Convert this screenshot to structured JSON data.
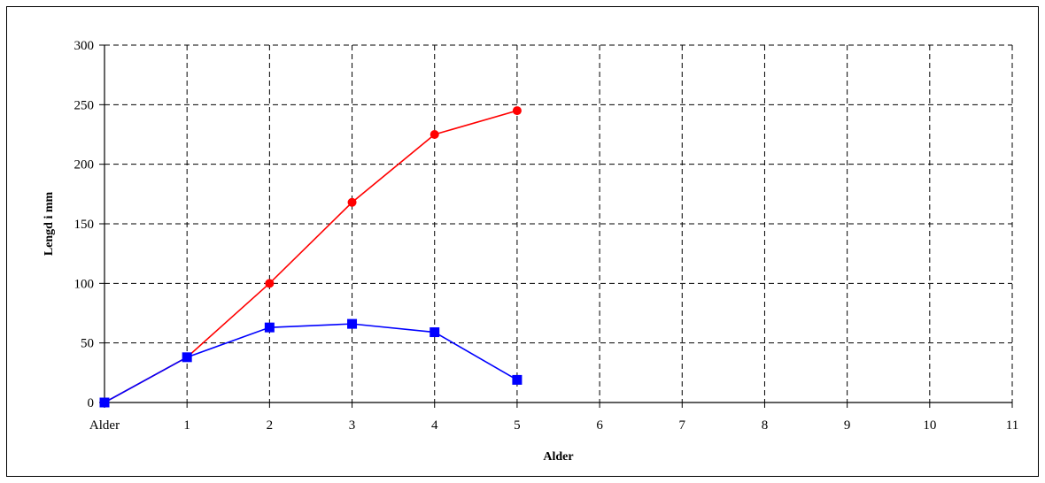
{
  "chart_data": {
    "type": "line",
    "title": "",
    "xlabel": "Alder",
    "ylabel": "Lengd i mm",
    "x_tick_labels": [
      "Alder",
      "1",
      "2",
      "3",
      "4",
      "5",
      "6",
      "7",
      "8",
      "9",
      "10",
      "11"
    ],
    "xlim": [
      0,
      11
    ],
    "ylim": [
      0,
      300
    ],
    "y_ticks": [
      0,
      50,
      100,
      150,
      200,
      250,
      300
    ],
    "grid": true,
    "legend": "none",
    "series": [
      {
        "color": "#ff0000",
        "marker": "circle",
        "x": [
          0,
          1,
          2,
          3,
          4,
          5
        ],
        "y": [
          0,
          38,
          100,
          168,
          225,
          245
        ]
      },
      {
        "color": "#0000ff",
        "marker": "square",
        "x": [
          0,
          1,
          2,
          3,
          4,
          5
        ],
        "y": [
          0,
          38,
          63,
          66,
          59,
          19
        ]
      }
    ]
  }
}
